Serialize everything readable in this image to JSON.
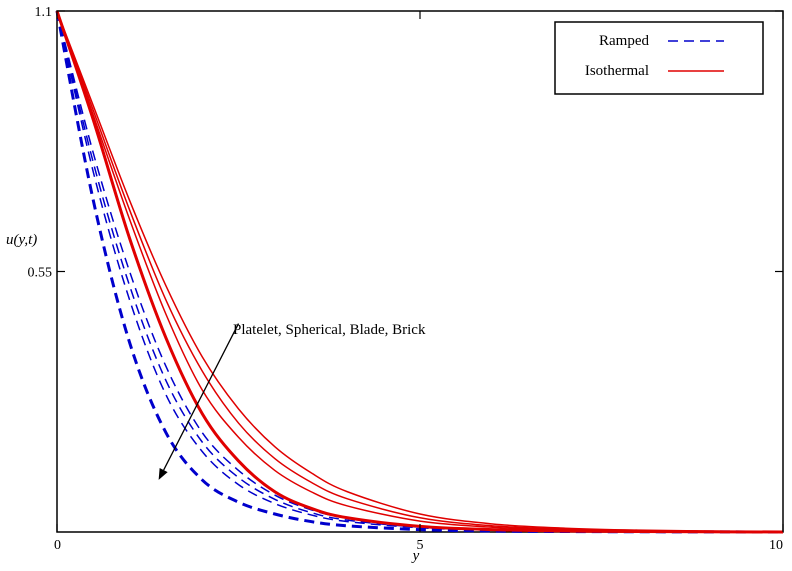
{
  "chart_data": {
    "type": "line",
    "xlabel": "y",
    "ylabel": "u(y,t)",
    "xlim": [
      0,
      10
    ],
    "ylim": [
      0,
      1.1
    ],
    "x_ticks": [
      "0",
      "5",
      "10"
    ],
    "y_ticks": [
      "1.1",
      "0.55"
    ],
    "grid": false,
    "legend_position": "top-right",
    "legend": [
      {
        "label": "Ramped",
        "color": "#0000cc",
        "style": "dashed"
      },
      {
        "label": "Isothermal",
        "color": "#e00000",
        "style": "solid"
      }
    ],
    "annotation": {
      "text": "Platelet, Spherical, Blade, Brick",
      "arrow_from": [
        2.5,
        0.44
      ],
      "arrow_to": [
        1.4,
        0.11
      ]
    },
    "x": [
      0,
      0.5,
      1,
      1.5,
      2,
      2.5,
      3,
      3.5,
      4,
      5,
      6,
      7,
      8,
      10
    ],
    "series": [
      {
        "style": "dashed",
        "color": "#0000cc",
        "width": 3,
        "values": [
          1.1,
          0.7,
          0.4,
          0.21,
          0.11,
          0.063,
          0.038,
          0.022,
          0.013,
          0.005,
          0.002,
          0.001,
          0.0005,
          0.0
        ]
      },
      {
        "style": "dashed",
        "color": "#0000cc",
        "width": 1.5,
        "values": [
          1.1,
          0.76,
          0.49,
          0.29,
          0.17,
          0.1,
          0.06,
          0.036,
          0.022,
          0.009,
          0.004,
          0.002,
          0.001,
          0.0
        ]
      },
      {
        "style": "dashed",
        "color": "#0000cc",
        "width": 1.5,
        "values": [
          1.1,
          0.78,
          0.52,
          0.32,
          0.19,
          0.115,
          0.069,
          0.041,
          0.025,
          0.01,
          0.004,
          0.002,
          0.001,
          0.0
        ]
      },
      {
        "style": "dashed",
        "color": "#0000cc",
        "width": 1.5,
        "values": [
          1.1,
          0.8,
          0.55,
          0.35,
          0.21,
          0.13,
          0.078,
          0.047,
          0.029,
          0.011,
          0.005,
          0.002,
          0.001,
          0.0
        ]
      },
      {
        "style": "solid",
        "color": "#e00000",
        "width": 3,
        "values": [
          1.1,
          0.87,
          0.62,
          0.41,
          0.25,
          0.15,
          0.085,
          0.05,
          0.03,
          0.012,
          0.005,
          0.002,
          0.001,
          0.0
        ]
      },
      {
        "style": "solid",
        "color": "#e00000",
        "width": 1.5,
        "values": [
          1.1,
          0.88,
          0.66,
          0.46,
          0.3,
          0.2,
          0.13,
          0.085,
          0.055,
          0.023,
          0.01,
          0.004,
          0.002,
          0.0
        ]
      },
      {
        "style": "solid",
        "color": "#e00000",
        "width": 1.5,
        "values": [
          1.1,
          0.89,
          0.68,
          0.49,
          0.34,
          0.23,
          0.155,
          0.105,
          0.07,
          0.03,
          0.013,
          0.006,
          0.003,
          0.0
        ]
      },
      {
        "style": "solid",
        "color": "#e00000",
        "width": 1.5,
        "values": [
          1.1,
          0.9,
          0.7,
          0.52,
          0.37,
          0.26,
          0.18,
          0.125,
          0.085,
          0.038,
          0.017,
          0.008,
          0.004,
          0.0
        ]
      }
    ]
  }
}
